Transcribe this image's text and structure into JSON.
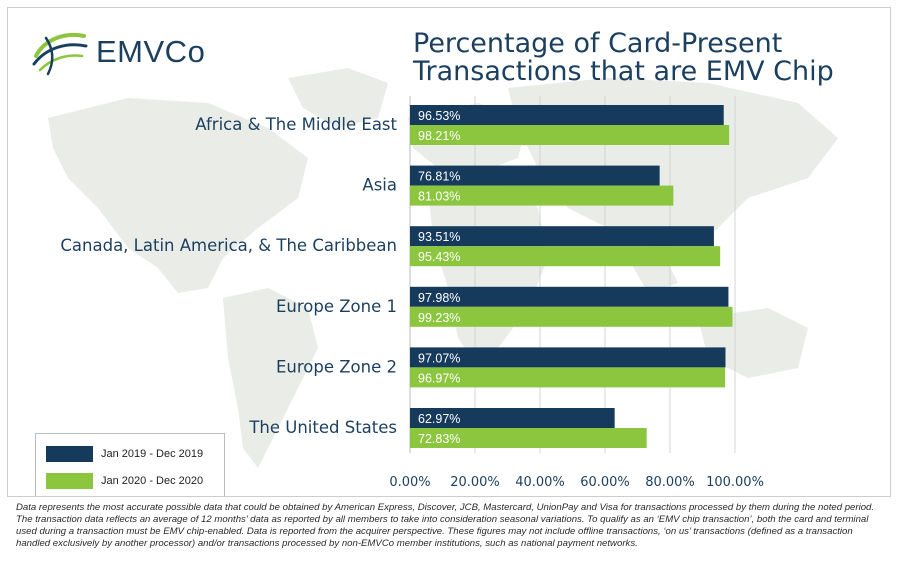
{
  "brand": {
    "name": "EMVCo",
    "logo_icon": "emvco-swoosh-logo"
  },
  "chart_data": {
    "type": "bar",
    "orientation": "horizontal",
    "title": [
      "Percentage of Card-Present",
      "Transactions that are EMV Chip"
    ],
    "categories": [
      "Africa & The Middle East",
      "Asia",
      "Canada, Latin America, & The Caribbean",
      "Europe Zone 1",
      "Europe Zone 2",
      "The United States"
    ],
    "series": [
      {
        "name": "Jan 2019 - Dec 2019",
        "color": "#163a5c",
        "values": [
          96.53,
          76.81,
          93.51,
          97.98,
          97.07,
          62.97
        ],
        "labels": [
          "96.53%",
          "76.81%",
          "93.51%",
          "97.98%",
          "97.07%",
          "62.97%"
        ]
      },
      {
        "name": "Jan 2020 - Dec 2020",
        "color": "#8cc63f",
        "values": [
          98.21,
          81.03,
          95.43,
          99.23,
          96.97,
          72.83
        ],
        "labels": [
          "98.21%",
          "81.03%",
          "95.43%",
          "99.23%",
          "96.97%",
          "72.83%"
        ]
      }
    ],
    "xlim": [
      0,
      100
    ],
    "ticks": [
      0,
      20,
      40,
      60,
      80,
      100
    ],
    "tick_labels": [
      "0.00%",
      "20.00%",
      "40.00%",
      "60.00%",
      "80.00%",
      "100.00%"
    ],
    "grid": "vertical",
    "legend": "bottom-left"
  },
  "footnote": "Data represents the most accurate possible data that could be obtained by American Express, Discover, JCB, Mastercard, UnionPay and Visa for transactions processed by them during the noted period. The transaction data reflects an average of 12 months’ data as reported by all members to take into consideration seasonal variations.  To qualify as an ‘EMV chip transaction’, both the card and terminal used during a transaction must be EMV chip-enabled. Data is reported from the acquirer perspective. These figures may not include offline transactions, ‘on us’ transactions (defined as a transaction handled exclusively by another processor) and/or transactions processed by non-EMVCo member institutions, such as national payment networks."
}
